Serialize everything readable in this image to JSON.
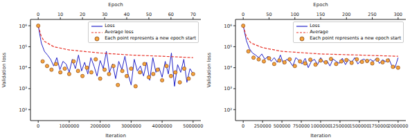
{
  "chart_data": [
    {
      "type": "line",
      "x_label": "Iteration",
      "y_label": "Validation loss",
      "x2_label": "Epoch",
      "log": "y",
      "legend": "upper right",
      "xlim": [
        -250000,
        5250000
      ],
      "xticks": [
        0,
        1000000,
        2000000,
        3000000,
        4000000,
        5000000
      ],
      "x2lim": [
        -3.5,
        73.5
      ],
      "x2ticks": [
        0,
        10,
        20,
        30,
        40,
        50,
        60,
        70
      ],
      "ylim": [
        30,
        2000000
      ],
      "yticks": [
        {
          "value": 100,
          "label": "10²"
        },
        {
          "value": 1000,
          "label": "10³"
        },
        {
          "value": 10000,
          "label": "10⁴"
        },
        {
          "value": 100000,
          "label": "10⁵"
        },
        {
          "value": 1000000,
          "label": "10⁶"
        }
      ],
      "series": [
        {
          "name": "Loss",
          "color": "#2323c8",
          "line_style": "solid",
          "x": [
            0,
            100000,
            200000,
            300000,
            400000,
            500000,
            600000,
            700000,
            800000,
            900000,
            1000000,
            1100000,
            1200000,
            1300000,
            1400000,
            1500000,
            1600000,
            1700000,
            1800000,
            1900000,
            2000000,
            2100000,
            2200000,
            2300000,
            2400000,
            2500000,
            2600000,
            2700000,
            2800000,
            2900000,
            3000000,
            3100000,
            3200000,
            3300000,
            3400000,
            3500000,
            3600000,
            3700000,
            3800000,
            3900000,
            4000000,
            4100000,
            4200000,
            4300000,
            4400000,
            4500000,
            4600000,
            4700000,
            4800000,
            4900000,
            5000000
          ],
          "values": [
            1000000,
            150000,
            60000,
            40000,
            25000,
            12000,
            30000,
            8000,
            20000,
            15000,
            6000,
            25000,
            9000,
            40000,
            7000,
            18000,
            5000,
            30000,
            12000,
            4000,
            22000,
            9000,
            60000,
            6000,
            15000,
            3000,
            20000,
            8000,
            35000,
            5000,
            1500,
            25000,
            7000,
            12000,
            4000,
            18000,
            2500,
            30000,
            6000,
            10000,
            3500,
            20000,
            5000,
            50000,
            1300,
            14000,
            6000,
            25000,
            2000,
            9000,
            5000
          ]
        },
        {
          "name": "Average loss",
          "color": "#e8342a",
          "line_style": "dashed",
          "x": [
            0,
            100000,
            200000,
            500000,
            1000000,
            2000000,
            3000000,
            4000000,
            5000000
          ],
          "values": [
            1000000,
            300000,
            180000,
            100000,
            70000,
            50000,
            40000,
            35000,
            30000
          ]
        },
        {
          "name": "Each point represents a new epoch start",
          "type": "scatter",
          "axis": "x2",
          "color": "#f5a33c",
          "marker": "circle",
          "x": [
            0,
            2,
            4,
            6,
            8,
            10,
            12,
            14,
            16,
            18,
            20,
            22,
            24,
            26,
            28,
            30,
            32,
            34,
            36,
            38,
            40,
            42,
            44,
            46,
            48,
            50,
            52,
            54,
            56,
            58,
            60,
            62,
            64,
            66,
            68,
            70
          ],
          "values": [
            1000000,
            20000,
            12000,
            8000,
            15000,
            6000,
            9000,
            5000,
            20000,
            7000,
            4000,
            10000,
            6000,
            25000,
            3000,
            8000,
            5000,
            12000,
            1500,
            7000,
            4000,
            9000,
            1300,
            6000,
            15000,
            3500,
            5000,
            8000,
            2500,
            12000,
            4000,
            6000,
            2000,
            9000,
            3000,
            5000
          ]
        }
      ]
    },
    {
      "type": "line",
      "x_label": "Iteration",
      "y_label": "Validation loss",
      "x2_label": "Epoch",
      "log": "y",
      "legend": "upper right",
      "xlim": [
        -100000,
        2100000
      ],
      "xticks": [
        0,
        250000,
        500000,
        750000,
        1000000,
        1250000,
        1500000,
        1750000,
        2000000
      ],
      "x2lim": [
        -15,
        315
      ],
      "x2ticks": [
        0,
        50,
        100,
        150,
        200,
        250,
        300
      ],
      "ylim": [
        30,
        2000000
      ],
      "yticks": [
        {
          "value": 100,
          "label": "10²"
        },
        {
          "value": 1000,
          "label": "10³"
        },
        {
          "value": 10000,
          "label": "10⁴"
        },
        {
          "value": 100000,
          "label": "10⁵"
        },
        {
          "value": 1000000,
          "label": "10⁶"
        }
      ],
      "series": [
        {
          "name": "Loss",
          "color": "#2323c8",
          "line_style": "solid",
          "x": [
            0,
            40000,
            80000,
            120000,
            160000,
            200000,
            240000,
            280000,
            320000,
            360000,
            400000,
            440000,
            480000,
            520000,
            560000,
            600000,
            640000,
            680000,
            720000,
            760000,
            800000,
            840000,
            880000,
            920000,
            960000,
            1000000,
            1040000,
            1080000,
            1120000,
            1160000,
            1200000,
            1240000,
            1280000,
            1320000,
            1360000,
            1400000,
            1440000,
            1480000,
            1520000,
            1560000,
            1600000,
            1640000,
            1680000,
            1720000,
            1760000,
            1800000,
            1840000,
            1880000,
            1920000,
            1960000,
            2000000
          ],
          "values": [
            1000000,
            200000,
            80000,
            50000,
            40000,
            30000,
            45000,
            25000,
            35000,
            20000,
            30000,
            18000,
            40000,
            15000,
            25000,
            20000,
            12000,
            30000,
            22000,
            15000,
            28000,
            10000,
            20000,
            25000,
            14000,
            30000,
            18000,
            22000,
            12000,
            26000,
            20000,
            16000,
            28000,
            14000,
            24000,
            18000,
            30000,
            15000,
            22000,
            26000,
            17000,
            25000,
            20000,
            28000,
            16000,
            24000,
            19000,
            27000,
            12000,
            10000,
            30000
          ]
        },
        {
          "name": "Average",
          "color": "#e8342a",
          "line_style": "dashed",
          "x": [
            0,
            40000,
            100000,
            250000,
            500000,
            1000000,
            1500000,
            2000000
          ],
          "values": [
            1000000,
            300000,
            150000,
            90000,
            60000,
            45000,
            40000,
            35000
          ]
        },
        {
          "name": "Each point represents a new epoch start",
          "type": "scatter",
          "axis": "x2",
          "color": "#f5a33c",
          "marker": "circle",
          "x": [
            0,
            10,
            20,
            30,
            40,
            50,
            60,
            70,
            80,
            90,
            100,
            110,
            120,
            130,
            140,
            150,
            160,
            170,
            180,
            190,
            200,
            210,
            220,
            230,
            240,
            250,
            260,
            270,
            280,
            290,
            300
          ],
          "values": [
            1000000,
            60000,
            30000,
            25000,
            20000,
            28000,
            15000,
            22000,
            18000,
            25000,
            12000,
            20000,
            16000,
            24000,
            14000,
            22000,
            18000,
            26000,
            15000,
            20000,
            23000,
            17000,
            25000,
            19000,
            21000,
            16000,
            24000,
            18000,
            22000,
            11000,
            10000
          ]
        }
      ]
    }
  ]
}
